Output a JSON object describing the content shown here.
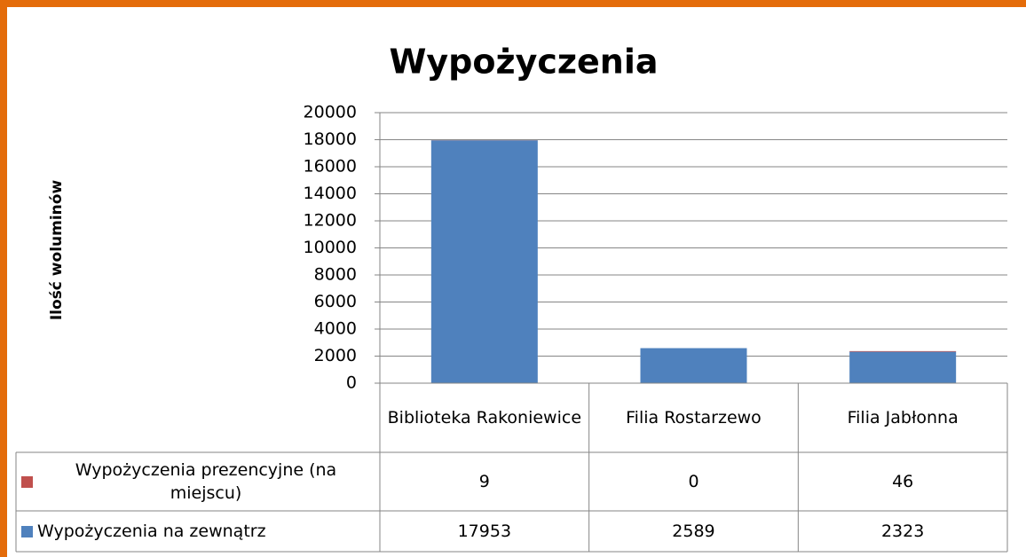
{
  "chart_data": {
    "type": "bar",
    "stacked": true,
    "title": "Wypożyczenia",
    "y_label": "Ilość woluminów",
    "categories": [
      "Biblioteka Rakoniewice",
      "Filia Rostarzewo",
      "Filia Jabłonna"
    ],
    "series": [
      {
        "name": "Wypożyczenia prezencyjne (na miejscu)",
        "color": "#c0504d",
        "values": [
          9,
          0,
          46
        ]
      },
      {
        "name": "Wypożyczenia na zewnątrz",
        "color": "#4f81bd",
        "values": [
          17953,
          2589,
          2323
        ]
      }
    ],
    "ylim": [
      0,
      20000
    ],
    "yticks": [
      0,
      2000,
      4000,
      6000,
      8000,
      10000,
      12000,
      14000,
      16000,
      18000,
      20000
    ],
    "grid": true,
    "data_table": true
  }
}
